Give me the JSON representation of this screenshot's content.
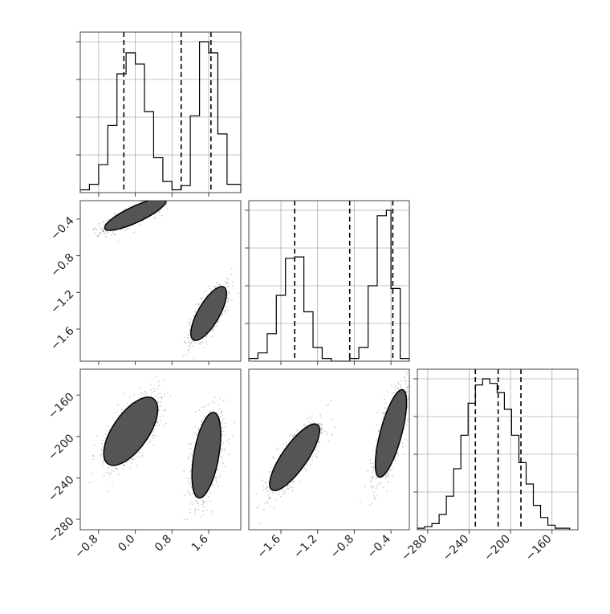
{
  "chart_data": {
    "type": "corner",
    "title": "",
    "colors": {
      "line": "#000000",
      "scatter": "#7f7f7f",
      "grid": "#b0b0b0"
    },
    "grid": true,
    "params": [
      {
        "name": "",
        "range": [
          -1.2,
          2.3
        ],
        "ticks": [
          -0.8,
          0.0,
          0.8,
          1.6
        ],
        "tick_labels": [
          "−0.8",
          "0.0",
          "0.8",
          "1.6"
        ],
        "quantiles": [
          -0.25,
          1.0,
          1.65
        ],
        "histogram": {
          "bin_edges": [
            -1.2,
            -1.0,
            -0.8,
            -0.6,
            -0.4,
            -0.2,
            0.0,
            0.2,
            0.4,
            0.6,
            0.8,
            1.0,
            1.2,
            1.4,
            1.6,
            1.8,
            2.0,
            2.3
          ],
          "counts": [
            2,
            6,
            20,
            48,
            85,
            100,
            92,
            58,
            25,
            8,
            2,
            5,
            55,
            108,
            100,
            42,
            6
          ]
        }
      },
      {
        "name": "",
        "range": [
          -1.95,
          -0.2
        ],
        "ticks": [
          -1.6,
          -1.2,
          -0.8,
          -0.4
        ],
        "tick_labels": [
          "−1.6",
          "−1.2",
          "−0.8",
          "−0.4"
        ],
        "quantiles": [
          -1.45,
          -0.85,
          -0.38
        ],
        "histogram": {
          "bin_edges": [
            -1.95,
            -1.85,
            -1.75,
            -1.65,
            -1.55,
            -1.45,
            -1.35,
            -1.25,
            -1.15,
            -1.05,
            -0.95,
            -0.85,
            -0.75,
            -0.65,
            -0.55,
            -0.45,
            -0.4,
            -0.3,
            -0.2
          ],
          "counts": [
            2,
            6,
            20,
            48,
            75,
            76,
            36,
            10,
            2,
            0,
            0,
            2,
            10,
            55,
            106,
            110,
            53,
            2
          ]
        }
      },
      {
        "name": "",
        "range": [
          -290,
          -135
        ],
        "ticks": [
          -280,
          -240,
          -200,
          -160
        ],
        "tick_labels": [
          "−280",
          "−240",
          "−200",
          "−160"
        ],
        "quantiles": [
          -234,
          -212,
          -190
        ],
        "histogram": {
          "bin_edges": [
            -290,
            -283,
            -276,
            -269,
            -262,
            -255,
            -248,
            -241,
            -234,
            -227,
            -220,
            -213,
            -206,
            -199,
            -192,
            -185,
            -178,
            -171,
            -164,
            -157,
            -150,
            -143
          ],
          "counts": [
            1,
            2,
            4,
            10,
            22,
            40,
            62,
            83,
            95,
            99,
            96,
            90,
            79,
            62,
            44,
            30,
            16,
            8,
            3,
            1,
            1
          ]
        }
      }
    ],
    "pairs": [
      {
        "x_param": 0,
        "y_param": 1,
        "clusters": [
          {
            "center": [
              0.0,
              -0.35
            ],
            "sx": 0.42,
            "sy": 0.09,
            "angle_deg": 25,
            "n": 900
          },
          {
            "center": [
              1.6,
              -1.43
            ],
            "sx": 0.24,
            "sy": 0.19,
            "angle_deg": 60,
            "n": 900
          }
        ]
      },
      {
        "x_param": 0,
        "y_param": 2,
        "clusters": [
          {
            "center": [
              -0.1,
              -195
            ],
            "sx": 0.4,
            "sy": 22,
            "angle_deg": 55,
            "n": 900
          },
          {
            "center": [
              1.55,
              -218
            ],
            "sx": 0.28,
            "sy": 24,
            "angle_deg": 80,
            "n": 900
          }
        ]
      },
      {
        "x_param": 1,
        "y_param": 2,
        "clusters": [
          {
            "center": [
              -1.45,
              -220
            ],
            "sx": 0.14,
            "sy": 22,
            "angle_deg": 55,
            "n": 900
          },
          {
            "center": [
              -0.4,
              -197
            ],
            "sx": 0.12,
            "sy": 25,
            "angle_deg": 75,
            "n": 900
          }
        ]
      }
    ],
    "contour_levels_sigma": [
      0.5,
      1.0,
      1.5,
      2.0
    ]
  }
}
